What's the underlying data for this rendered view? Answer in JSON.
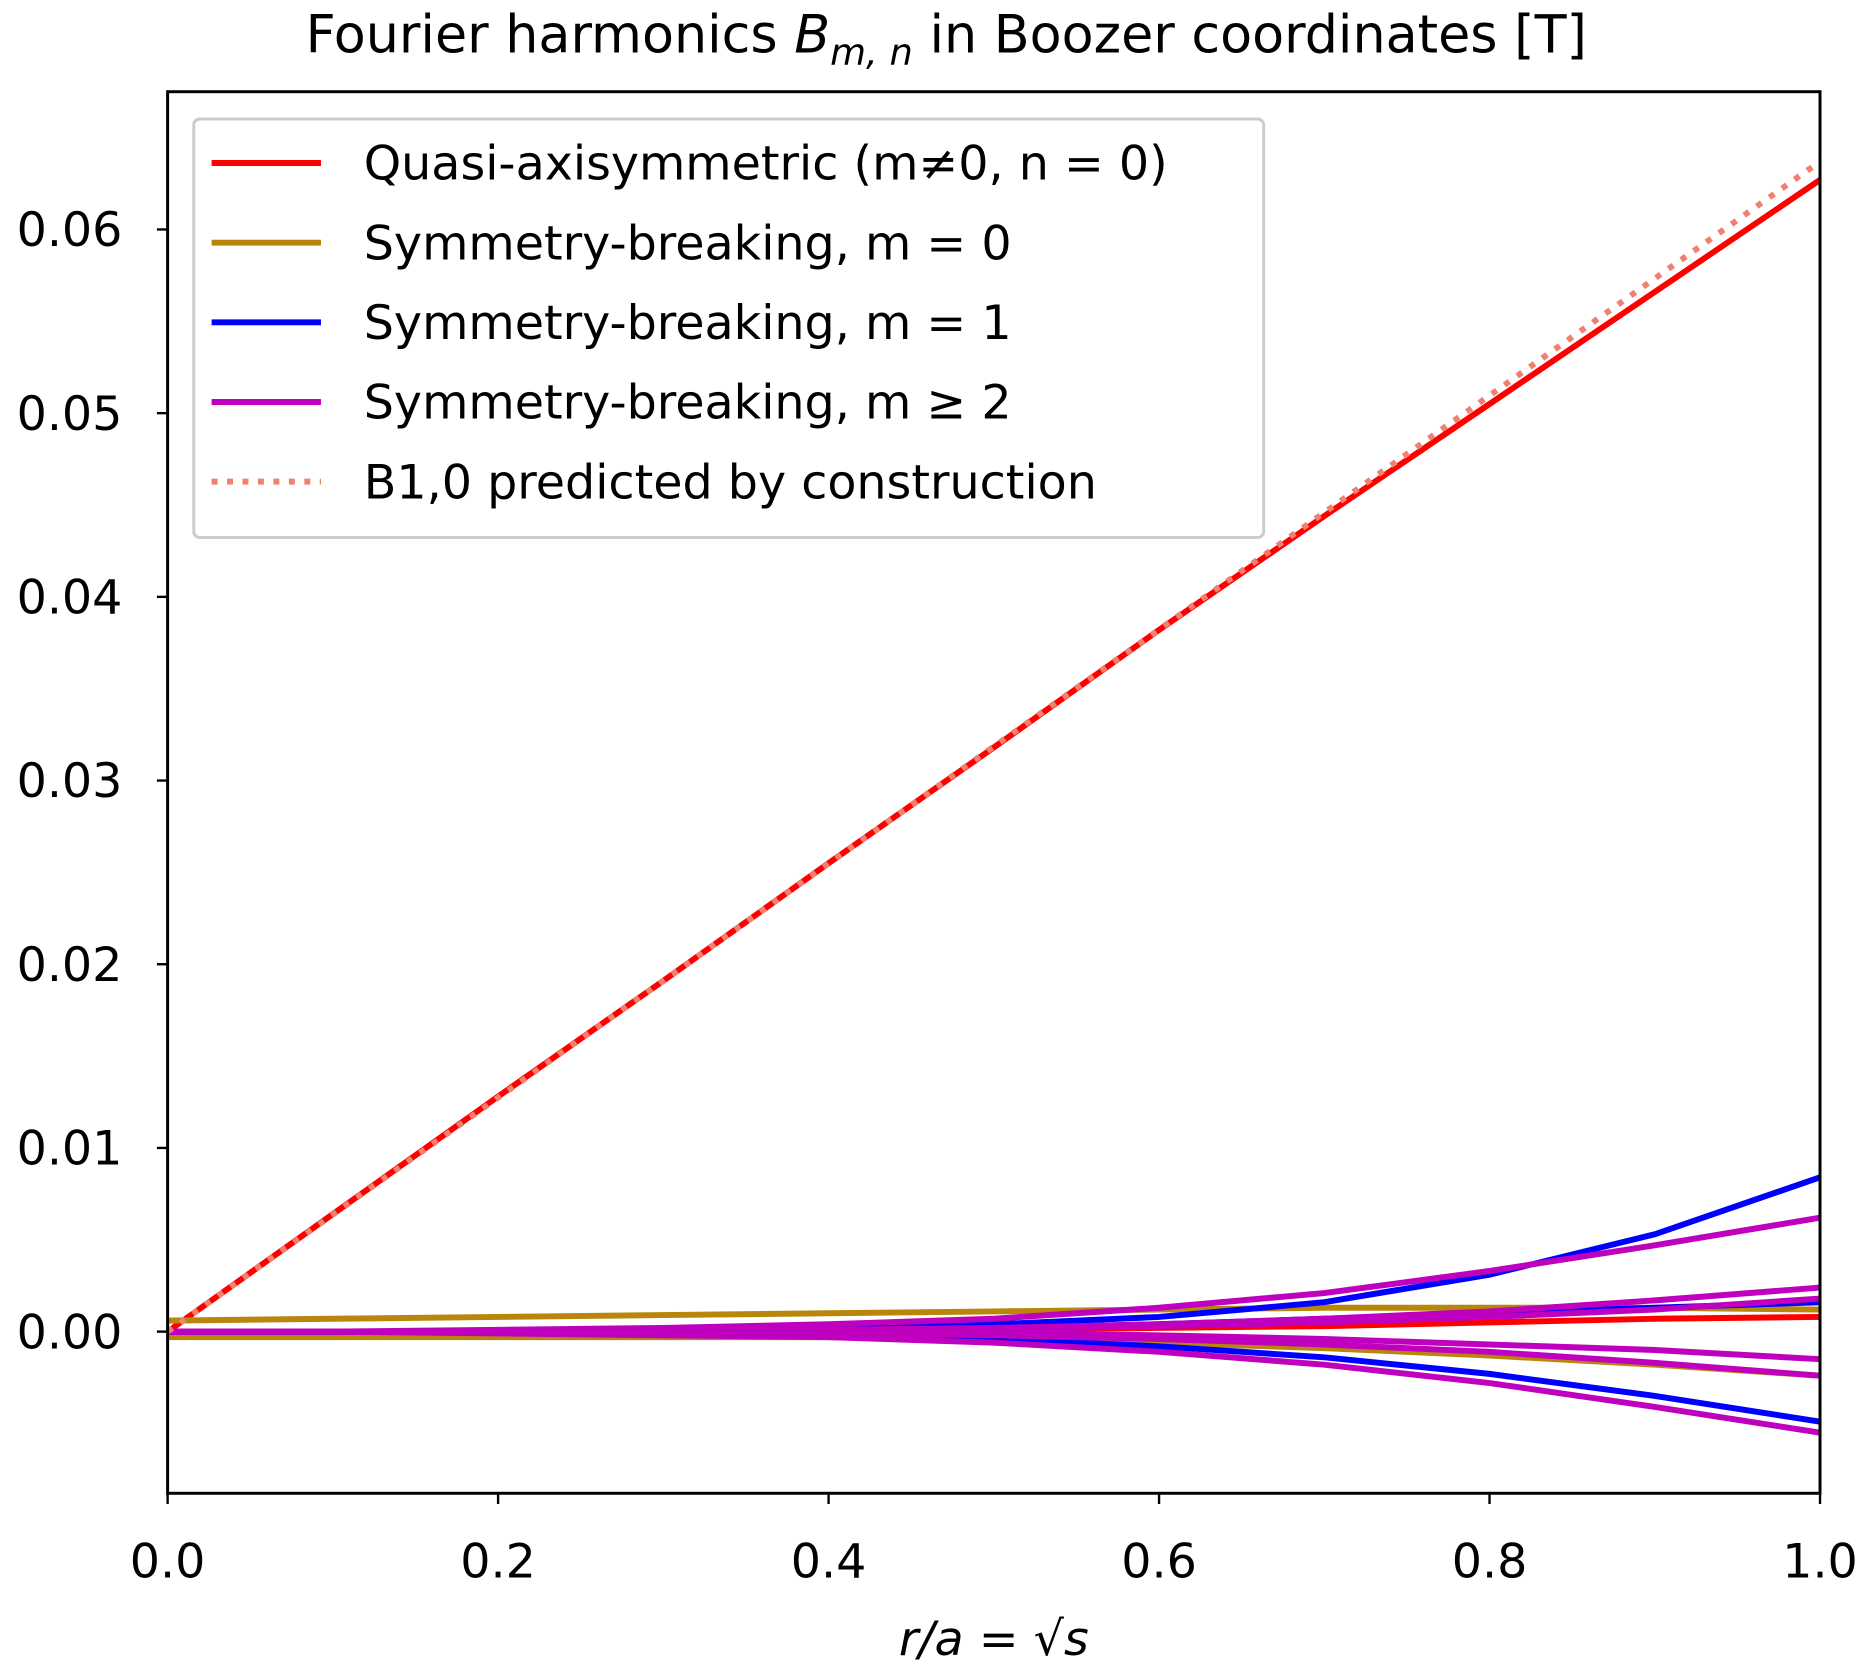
{
  "chart_data": {
    "type": "line",
    "title": [
      "Fourier harmonics ",
      "B",
      "m, n",
      " in Boozer coordinates [T]"
    ],
    "xlabel": "r/a = √s",
    "x": [
      0,
      0.1,
      0.2,
      0.3,
      0.4,
      0.5,
      0.6,
      0.7,
      0.8,
      0.9,
      1.0
    ],
    "xlim": [
      0,
      1
    ],
    "ylim": [
      -0.0088,
      0.0675
    ],
    "xticks": [
      {
        "value": 0,
        "label": "0.0"
      },
      0.2,
      0.4,
      0.6,
      0.8,
      {
        "value": 1,
        "label": "1.0"
      }
    ],
    "yticks": [
      {
        "value": 0,
        "label": "0.00"
      },
      0.01,
      0.02,
      0.03,
      0.04,
      0.05,
      0.06
    ],
    "legend_position": "upper left",
    "series": [
      {
        "name": "Quasi-axisymmetric (m≠0, n = 0)",
        "color": "#ff0000",
        "style": "solid",
        "lines": [
          {
            "values": [
              0,
              0.0064,
              0.0128,
              0.0191,
              0.0255,
              0.0318,
              0.0382,
              0.0444,
              0.0505,
              0.0566,
              0.0627
            ]
          },
          {
            "values": [
              0,
              0,
              0,
              0,
              0,
              0.0001,
              0.0002,
              0.0003,
              0.0005,
              0.0007,
              0.0008
            ]
          }
        ]
      },
      {
        "name": "Symmetry-breaking, m = 0",
        "color": "#b8860b",
        "style": "solid",
        "lines": [
          {
            "values": [
              0.0006,
              0.0007,
              0.0008,
              0.0009,
              0.001,
              0.0011,
              0.0012,
              0.0013,
              0.0013,
              0.0013,
              0.0012
            ]
          },
          {
            "values": [
              -0.0003,
              -0.0003,
              -0.0003,
              -0.0003,
              -0.0003,
              -0.0004,
              -0.0006,
              -0.0009,
              -0.0013,
              -0.0018,
              -0.0024
            ]
          }
        ]
      },
      {
        "name": "Symmetry-breaking, m = 1",
        "color": "#0000ff",
        "style": "solid",
        "lines": [
          {
            "values": [
              0,
              0,
              0,
              0.0001,
              0.0002,
              0.0004,
              0.0008,
              0.0016,
              0.0031,
              0.0053,
              0.0084
            ]
          },
          {
            "values": [
              0,
              0,
              0,
              0,
              0.0001,
              0.0002,
              0.0004,
              0.0007,
              0.001,
              0.0013,
              0.0016
            ]
          },
          {
            "values": [
              0,
              0,
              0,
              -0.0001,
              -0.0002,
              -0.0004,
              -0.0008,
              -0.0014,
              -0.0023,
              -0.0035,
              -0.0049
            ]
          }
        ]
      },
      {
        "name": "Symmetry-breaking, m ≥ 2",
        "color": "#bf00bf",
        "style": "solid",
        "lines": [
          {
            "values": [
              0,
              0,
              0.0001,
              0.0002,
              0.0004,
              0.0007,
              0.0013,
              0.0021,
              0.0033,
              0.0047,
              0.0062
            ]
          },
          {
            "values": [
              0,
              0,
              0,
              0,
              0.0001,
              0.0002,
              0.0004,
              0.0007,
              0.0011,
              0.0017,
              0.0024
            ]
          },
          {
            "values": [
              0,
              0,
              0,
              0,
              0.0001,
              0.0001,
              0.0003,
              0.0005,
              0.0008,
              0.0012,
              0.0018
            ]
          },
          {
            "values": [
              0,
              0,
              0,
              0,
              0,
              -0.0001,
              -0.0002,
              -0.0004,
              -0.0007,
              -0.001,
              -0.0015
            ]
          },
          {
            "values": [
              0,
              0,
              0,
              0,
              -0.0001,
              -0.0002,
              -0.0004,
              -0.0007,
              -0.0011,
              -0.0017,
              -0.0024
            ]
          },
          {
            "values": [
              0,
              0,
              -0.0001,
              -0.0002,
              -0.0003,
              -0.0006,
              -0.0011,
              -0.0018,
              -0.0028,
              -0.0041,
              -0.0055
            ]
          }
        ]
      },
      {
        "name": "B1,0 predicted by construction",
        "color": "#f08070",
        "style": "dotted",
        "lines": [
          {
            "values": [
              0,
              0.00637,
              0.01274,
              0.01911,
              0.02548,
              0.03185,
              0.03822,
              0.04459,
              0.05096,
              0.05733,
              0.0637
            ]
          }
        ]
      }
    ]
  }
}
